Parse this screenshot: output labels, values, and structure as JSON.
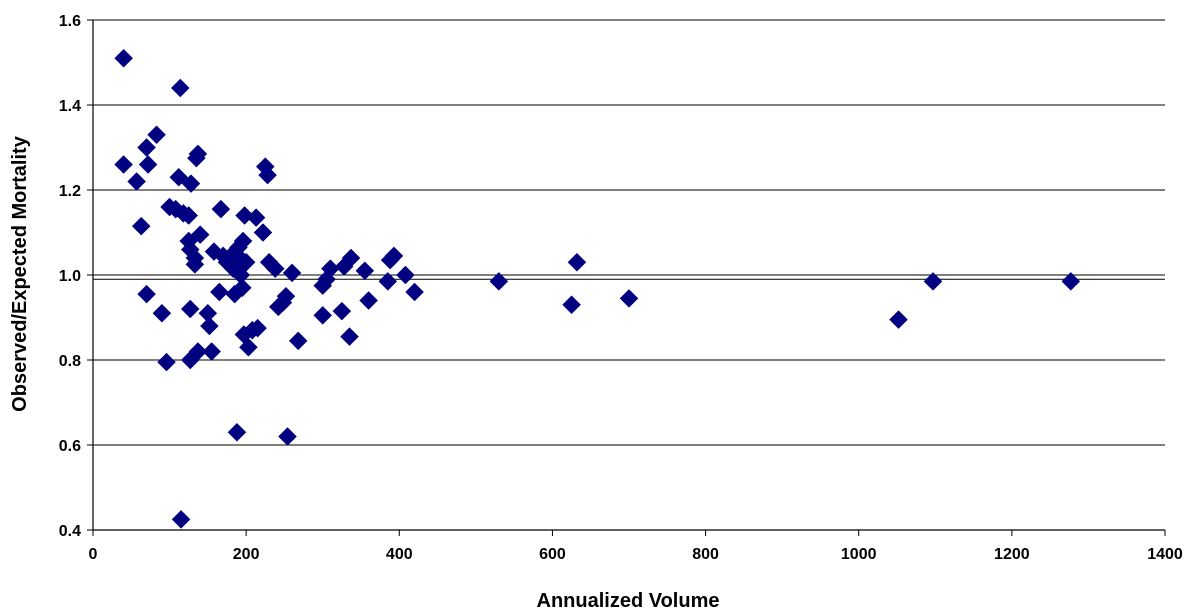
{
  "chart_data": {
    "type": "scatter",
    "title": "",
    "xlabel": "Annualized Volume",
    "ylabel": "Observed/Expected Mortality",
    "xlim": [
      0,
      1400
    ],
    "ylim": [
      0.4,
      1.6
    ],
    "x_ticks": [
      0,
      200,
      400,
      600,
      800,
      1000,
      1200,
      1400
    ],
    "y_ticks": [
      0.4,
      0.6,
      0.8,
      1.0,
      1.2,
      1.4,
      1.6
    ],
    "x_tick_labels": [
      "0",
      "200",
      "400",
      "600",
      "800",
      "1000",
      "1200",
      "1400"
    ],
    "y_tick_labels": [
      "0.4",
      "0.6",
      "0.8",
      "1.0",
      "1.2",
      "1.4",
      "1.6"
    ],
    "grid": "horizontal",
    "reference_line_y": 0.99,
    "marker": "diamond",
    "marker_color": "#000080",
    "legend": "none",
    "points": [
      {
        "x": 40,
        "y": 1.51
      },
      {
        "x": 40,
        "y": 1.26
      },
      {
        "x": 57,
        "y": 1.22
      },
      {
        "x": 63,
        "y": 1.115
      },
      {
        "x": 70,
        "y": 1.3
      },
      {
        "x": 72,
        "y": 1.26
      },
      {
        "x": 70,
        "y": 0.955
      },
      {
        "x": 83,
        "y": 1.33
      },
      {
        "x": 90,
        "y": 0.91
      },
      {
        "x": 96,
        "y": 0.795
      },
      {
        "x": 100,
        "y": 1.16
      },
      {
        "x": 108,
        "y": 1.155
      },
      {
        "x": 112,
        "y": 1.23
      },
      {
        "x": 114,
        "y": 1.44
      },
      {
        "x": 115,
        "y": 0.425
      },
      {
        "x": 118,
        "y": 1.145
      },
      {
        "x": 125,
        "y": 1.14
      },
      {
        "x": 128,
        "y": 1.215
      },
      {
        "x": 125,
        "y": 1.08
      },
      {
        "x": 127,
        "y": 1.06
      },
      {
        "x": 127,
        "y": 0.92
      },
      {
        "x": 127,
        "y": 0.8
      },
      {
        "x": 133,
        "y": 1.04
      },
      {
        "x": 133,
        "y": 1.025
      },
      {
        "x": 135,
        "y": 1.275
      },
      {
        "x": 137,
        "y": 1.285
      },
      {
        "x": 140,
        "y": 1.095
      },
      {
        "x": 137,
        "y": 0.82
      },
      {
        "x": 150,
        "y": 0.91
      },
      {
        "x": 152,
        "y": 0.88
      },
      {
        "x": 155,
        "y": 0.82
      },
      {
        "x": 158,
        "y": 1.055
      },
      {
        "x": 165,
        "y": 0.96
      },
      {
        "x": 167,
        "y": 1.155
      },
      {
        "x": 170,
        "y": 1.045
      },
      {
        "x": 175,
        "y": 1.03
      },
      {
        "x": 180,
        "y": 1.045
      },
      {
        "x": 183,
        "y": 1.015
      },
      {
        "x": 185,
        "y": 0.955
      },
      {
        "x": 188,
        "y": 0.63
      },
      {
        "x": 190,
        "y": 1.065
      },
      {
        "x": 192,
        "y": 1.04
      },
      {
        "x": 193,
        "y": 1.0
      },
      {
        "x": 195,
        "y": 0.97
      },
      {
        "x": 196,
        "y": 1.08
      },
      {
        "x": 197,
        "y": 0.86
      },
      {
        "x": 198,
        "y": 1.14
      },
      {
        "x": 200,
        "y": 1.03
      },
      {
        "x": 203,
        "y": 0.83
      },
      {
        "x": 208,
        "y": 0.87
      },
      {
        "x": 213,
        "y": 1.135
      },
      {
        "x": 215,
        "y": 0.875
      },
      {
        "x": 222,
        "y": 1.1
      },
      {
        "x": 225,
        "y": 1.255
      },
      {
        "x": 228,
        "y": 1.235
      },
      {
        "x": 230,
        "y": 1.03
      },
      {
        "x": 238,
        "y": 1.015
      },
      {
        "x": 242,
        "y": 0.925
      },
      {
        "x": 248,
        "y": 0.935
      },
      {
        "x": 252,
        "y": 0.95
      },
      {
        "x": 254,
        "y": 0.62
      },
      {
        "x": 260,
        "y": 1.005
      },
      {
        "x": 268,
        "y": 0.845
      },
      {
        "x": 300,
        "y": 0.905
      },
      {
        "x": 300,
        "y": 0.975
      },
      {
        "x": 305,
        "y": 0.99
      },
      {
        "x": 310,
        "y": 1.015
      },
      {
        "x": 325,
        "y": 0.915
      },
      {
        "x": 328,
        "y": 1.02
      },
      {
        "x": 335,
        "y": 0.855
      },
      {
        "x": 337,
        "y": 1.04
      },
      {
        "x": 355,
        "y": 1.01
      },
      {
        "x": 360,
        "y": 0.94
      },
      {
        "x": 385,
        "y": 0.985
      },
      {
        "x": 388,
        "y": 1.035
      },
      {
        "x": 393,
        "y": 1.045
      },
      {
        "x": 408,
        "y": 1.0
      },
      {
        "x": 420,
        "y": 0.96
      },
      {
        "x": 530,
        "y": 0.985
      },
      {
        "x": 625,
        "y": 0.93
      },
      {
        "x": 632,
        "y": 1.03
      },
      {
        "x": 700,
        "y": 0.945
      },
      {
        "x": 1052,
        "y": 0.895
      },
      {
        "x": 1097,
        "y": 0.985
      },
      {
        "x": 1277,
        "y": 0.985
      }
    ]
  }
}
